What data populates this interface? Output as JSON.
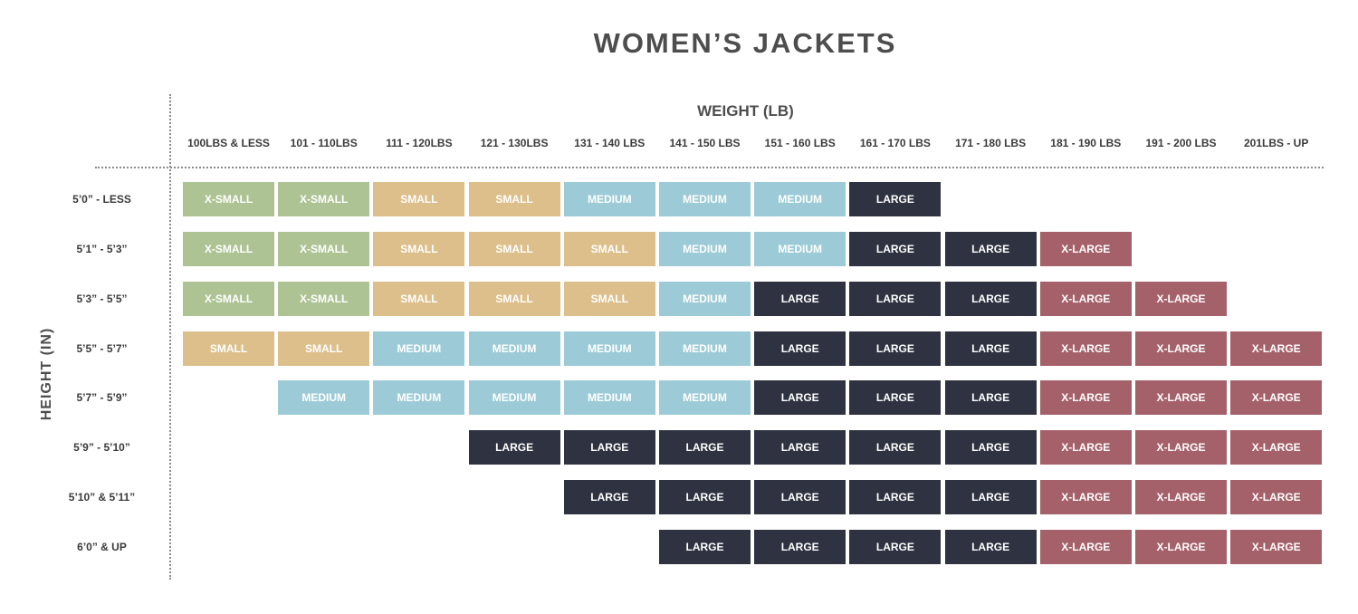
{
  "title": "WOMEN’S JACKETS",
  "x_axis_label": "WEIGHT (LB)",
  "y_axis_label": "HEIGHT (IN)",
  "size_labels": {
    "XS": "X-SMALL",
    "S": "SMALL",
    "M": "MEDIUM",
    "L": "LARGE",
    "XL": "X-LARGE"
  },
  "size_colors": {
    "XS": "#adc394",
    "S": "#ddbf8b",
    "M": "#9ccbd7",
    "L": "#2f3341",
    "XL": "#a5616a"
  },
  "weight_columns": [
    "100LBS & LESS",
    "101 - 110LBS",
    "111 - 120LBS",
    "121 - 130LBS",
    "131 - 140 LBS",
    "141 - 150 LBS",
    "151 - 160 LBS",
    "161 - 170 LBS",
    "171 - 180 LBS",
    "181 - 190 LBS",
    "191 - 200 LBS",
    "201LBS - UP"
  ],
  "height_rows": [
    "5’0” - LESS",
    "5’1” - 5’3”",
    "5’3” - 5’5”",
    "5’5” - 5’7”",
    "5’7” - 5’9”",
    "5’9” - 5’10”",
    "5’10” & 5’11”",
    "6’0” & UP"
  ],
  "grid": [
    [
      "XS",
      "XS",
      "S",
      "S",
      "M",
      "M",
      "M",
      "L",
      "",
      "",
      "",
      ""
    ],
    [
      "XS",
      "XS",
      "S",
      "S",
      "S",
      "M",
      "M",
      "L",
      "L",
      "XL",
      "",
      ""
    ],
    [
      "XS",
      "XS",
      "S",
      "S",
      "S",
      "M",
      "L",
      "L",
      "L",
      "XL",
      "XL",
      ""
    ],
    [
      "S",
      "S",
      "M",
      "M",
      "M",
      "M",
      "L",
      "L",
      "L",
      "XL",
      "XL",
      "XL"
    ],
    [
      "",
      "M",
      "M",
      "M",
      "M",
      "M",
      "L",
      "L",
      "L",
      "XL",
      "XL",
      "XL"
    ],
    [
      "",
      "",
      "",
      "L",
      "L",
      "L",
      "L",
      "L",
      "L",
      "XL",
      "XL",
      "XL"
    ],
    [
      "",
      "",
      "",
      "",
      "L",
      "L",
      "L",
      "L",
      "L",
      "XL",
      "XL",
      "XL"
    ],
    [
      "",
      "",
      "",
      "",
      "",
      "L",
      "L",
      "L",
      "L",
      "XL",
      "XL",
      "XL"
    ]
  ]
}
